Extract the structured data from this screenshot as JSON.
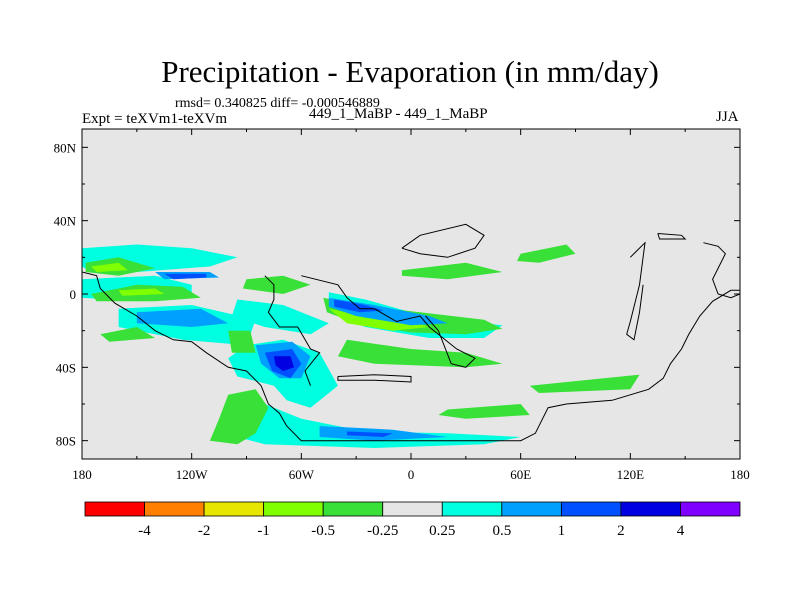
{
  "chart_data": {
    "type": "heatmap",
    "title": "Precipitation - Evaporation (in mm/day)",
    "stats": "rmsd= 0.340825 diff= -0.000546889",
    "left_label": "Expt = teXVm1-teXVm",
    "center_label": "449_1_MaBP - 449_1_MaBP",
    "right_label": "JJA",
    "x_ticks": [
      "180",
      "120W",
      "60W",
      "0",
      "60E",
      "120E",
      "180"
    ],
    "y_ticks": [
      "80N",
      "40N",
      "0",
      "40S",
      "80S"
    ],
    "xlim": [
      -180,
      180
    ],
    "ylim": [
      -90,
      90
    ],
    "background_color": "#e6e6e6",
    "colorbar": {
      "colors": [
        "#ff0000",
        "#ff8000",
        "#e6e600",
        "#80ff00",
        "#38e038",
        "#e6e6e6",
        "#00ffe0",
        "#00a0ff",
        "#0050ff",
        "#0000e0",
        "#8000ff"
      ],
      "labels": [
        "-4",
        "-2",
        "-1",
        "-0.5",
        "-0.25",
        "0.25",
        "0.5",
        "1",
        "2",
        "4"
      ]
    },
    "regions": [
      {
        "level": 6,
        "points": [
          [
            -180,
            25
          ],
          [
            -150,
            27
          ],
          [
            -120,
            25
          ],
          [
            -95,
            20
          ],
          [
            -110,
            15
          ],
          [
            -150,
            12
          ],
          [
            -175,
            12
          ],
          [
            -180,
            15
          ]
        ]
      },
      {
        "level": 6,
        "points": [
          [
            -180,
            8
          ],
          [
            -140,
            10
          ],
          [
            -120,
            5
          ],
          [
            -120,
            -2
          ],
          [
            -150,
            -4
          ],
          [
            -180,
            -2
          ]
        ]
      },
      {
        "level": 6,
        "points": [
          [
            -160,
            -8
          ],
          [
            -120,
            -6
          ],
          [
            -85,
            -14
          ],
          [
            -90,
            -28
          ],
          [
            -125,
            -25
          ],
          [
            -160,
            -18
          ]
        ]
      },
      {
        "level": 6,
        "points": [
          [
            -90,
            -28
          ],
          [
            -70,
            -25
          ],
          [
            -50,
            -32
          ],
          [
            -40,
            -50
          ],
          [
            -55,
            -62
          ],
          [
            -68,
            -58
          ],
          [
            -75,
            -50
          ],
          [
            -95,
            -45
          ],
          [
            -100,
            -35
          ]
        ]
      },
      {
        "level": 6,
        "points": [
          [
            -80,
            -60
          ],
          [
            -60,
            -68
          ],
          [
            -25,
            -75
          ],
          [
            20,
            -76
          ],
          [
            60,
            -78
          ],
          [
            40,
            -82
          ],
          [
            -20,
            -84
          ],
          [
            -80,
            -82
          ],
          [
            -95,
            -78
          ],
          [
            -90,
            -66
          ]
        ]
      },
      {
        "level": 6,
        "points": [
          [
            -45,
            1
          ],
          [
            -25,
            -3
          ],
          [
            0,
            -10
          ],
          [
            30,
            -15
          ],
          [
            50,
            -17
          ],
          [
            40,
            -24
          ],
          [
            10,
            -24
          ],
          [
            -25,
            -18
          ],
          [
            -45,
            -10
          ]
        ]
      },
      {
        "level": 6,
        "points": [
          [
            -95,
            -3
          ],
          [
            -70,
            -6
          ],
          [
            -45,
            -16
          ],
          [
            -55,
            -22
          ],
          [
            -80,
            -18
          ],
          [
            -98,
            -12
          ]
        ]
      },
      {
        "level": 4,
        "points": [
          [
            -175,
            0
          ],
          [
            -150,
            5
          ],
          [
            -125,
            4
          ],
          [
            -115,
            -2
          ],
          [
            -140,
            -4
          ],
          [
            -172,
            -4
          ]
        ]
      },
      {
        "level": 4,
        "points": [
          [
            -178,
            17
          ],
          [
            -160,
            20
          ],
          [
            -140,
            14
          ],
          [
            -160,
            10
          ],
          [
            -178,
            12
          ]
        ]
      },
      {
        "level": 4,
        "points": [
          [
            -100,
            -20
          ],
          [
            -88,
            -20
          ],
          [
            -85,
            -32
          ],
          [
            -98,
            -32
          ]
        ]
      },
      {
        "level": 4,
        "points": [
          [
            -100,
            -55
          ],
          [
            -85,
            -52
          ],
          [
            -78,
            -62
          ],
          [
            -85,
            -76
          ],
          [
            -95,
            -82
          ],
          [
            -110,
            -80
          ],
          [
            -105,
            -68
          ]
        ]
      },
      {
        "level": 4,
        "points": [
          [
            -35,
            -25
          ],
          [
            0,
            -30
          ],
          [
            30,
            -32
          ],
          [
            50,
            -38
          ],
          [
            30,
            -40
          ],
          [
            -20,
            -38
          ],
          [
            -40,
            -34
          ]
        ]
      },
      {
        "level": 4,
        "points": [
          [
            20,
            -63
          ],
          [
            60,
            -60
          ],
          [
            65,
            -66
          ],
          [
            30,
            -68
          ],
          [
            15,
            -66
          ]
        ]
      },
      {
        "level": 4,
        "points": [
          [
            60,
            22
          ],
          [
            85,
            27
          ],
          [
            90,
            22
          ],
          [
            70,
            17
          ],
          [
            58,
            18
          ]
        ]
      },
      {
        "level": 4,
        "points": [
          [
            65,
            -50
          ],
          [
            125,
            -44
          ],
          [
            120,
            -52
          ],
          [
            70,
            -54
          ]
        ]
      },
      {
        "level": 4,
        "points": [
          [
            -5,
            13
          ],
          [
            30,
            17
          ],
          [
            50,
            12
          ],
          [
            20,
            8
          ],
          [
            -5,
            10
          ]
        ]
      },
      {
        "level": 4,
        "points": [
          [
            -90,
            8
          ],
          [
            -70,
            10
          ],
          [
            -55,
            5
          ],
          [
            -70,
            0
          ],
          [
            -92,
            3
          ]
        ]
      },
      {
        "level": 4,
        "points": [
          [
            -48,
            -2
          ],
          [
            -30,
            -6
          ],
          [
            5,
            -10
          ],
          [
            40,
            -14
          ],
          [
            50,
            -19
          ],
          [
            30,
            -22
          ],
          [
            0,
            -21
          ],
          [
            -30,
            -16
          ],
          [
            -46,
            -10
          ]
        ]
      },
      {
        "level": 4,
        "points": [
          [
            -170,
            -22
          ],
          [
            -150,
            -18
          ],
          [
            -140,
            -24
          ],
          [
            -165,
            -26
          ]
        ]
      },
      {
        "level": 3,
        "points": [
          [
            -45,
            -8
          ],
          [
            -25,
            -12
          ],
          [
            0,
            -15
          ],
          [
            10,
            -18
          ],
          [
            -10,
            -20
          ],
          [
            -35,
            -16
          ]
        ]
      },
      {
        "level": 3,
        "points": [
          [
            -160,
            2
          ],
          [
            -140,
            3
          ],
          [
            -135,
            0
          ],
          [
            -158,
            -1
          ]
        ]
      },
      {
        "level": 3,
        "points": [
          [
            -175,
            15
          ],
          [
            -160,
            17
          ],
          [
            -155,
            13
          ],
          [
            -172,
            12
          ]
        ]
      },
      {
        "level": 7,
        "points": [
          [
            -85,
            -28
          ],
          [
            -65,
            -26
          ],
          [
            -55,
            -34
          ],
          [
            -60,
            -46
          ],
          [
            -72,
            -46
          ],
          [
            -82,
            -38
          ]
        ]
      },
      {
        "level": 7,
        "points": [
          [
            -150,
            -10
          ],
          [
            -115,
            -8
          ],
          [
            -100,
            -16
          ],
          [
            -120,
            -18
          ],
          [
            -150,
            -16
          ]
        ]
      },
      {
        "level": 7,
        "points": [
          [
            -45,
            -2
          ],
          [
            -20,
            -6
          ],
          [
            10,
            -12
          ],
          [
            20,
            -16
          ],
          [
            0,
            -17
          ],
          [
            -30,
            -12
          ],
          [
            -45,
            -7
          ]
        ]
      },
      {
        "level": 7,
        "points": [
          [
            -140,
            12
          ],
          [
            -110,
            12
          ],
          [
            -105,
            9
          ],
          [
            -135,
            8
          ]
        ]
      },
      {
        "level": 7,
        "points": [
          [
            -50,
            -72
          ],
          [
            -10,
            -74
          ],
          [
            20,
            -78
          ],
          [
            -20,
            -80
          ],
          [
            -50,
            -78
          ]
        ]
      },
      {
        "level": 8,
        "points": [
          [
            -80,
            -32
          ],
          [
            -65,
            -30
          ],
          [
            -60,
            -38
          ],
          [
            -66,
            -46
          ],
          [
            -76,
            -42
          ]
        ]
      },
      {
        "level": 8,
        "points": [
          [
            -135,
            11
          ],
          [
            -112,
            11
          ],
          [
            -112,
            9
          ],
          [
            -130,
            8
          ]
        ]
      },
      {
        "level": 8,
        "points": [
          [
            -42,
            -3
          ],
          [
            -25,
            -6
          ],
          [
            -15,
            -9
          ],
          [
            -28,
            -10
          ],
          [
            -42,
            -7
          ]
        ]
      },
      {
        "level": 8,
        "points": [
          [
            -35,
            -75
          ],
          [
            -10,
            -76
          ],
          [
            -15,
            -78
          ],
          [
            -35,
            -77
          ]
        ]
      },
      {
        "level": 9,
        "points": [
          [
            -75,
            -34
          ],
          [
            -66,
            -34
          ],
          [
            -64,
            -40
          ],
          [
            -70,
            -42
          ],
          [
            -74,
            -39
          ]
        ]
      }
    ],
    "coastlines": [
      [
        [
          -180,
          12
        ],
        [
          -172,
          10
        ],
        [
          -170,
          3
        ],
        [
          -162,
          -5
        ],
        [
          -150,
          -12
        ],
        [
          -140,
          -20
        ],
        [
          -130,
          -25
        ],
        [
          -120,
          -26
        ],
        [
          -112,
          -32
        ],
        [
          -100,
          -40
        ],
        [
          -90,
          -42
        ],
        [
          -82,
          -50
        ],
        [
          -78,
          -60
        ],
        [
          -72,
          -65
        ],
        [
          -68,
          -72
        ],
        [
          -60,
          -80
        ],
        [
          -40,
          -80
        ],
        [
          0,
          -80
        ],
        [
          40,
          -80
        ],
        [
          60,
          -80
        ],
        [
          68,
          -76
        ],
        [
          75,
          -62
        ],
        [
          85,
          -60
        ],
        [
          110,
          -58
        ],
        [
          130,
          -52
        ],
        [
          138,
          -46
        ],
        [
          142,
          -38
        ],
        [
          148,
          -30
        ],
        [
          152,
          -22
        ],
        [
          158,
          -12
        ],
        [
          165,
          -4
        ],
        [
          175,
          2
        ],
        [
          180,
          2
        ]
      ],
      [
        [
          -80,
          10
        ],
        [
          -75,
          5
        ],
        [
          -75,
          -3
        ],
        [
          -78,
          -10
        ],
        [
          -72,
          -18
        ],
        [
          -62,
          -18
        ],
        [
          -55,
          -30
        ],
        [
          -50,
          -32
        ],
        [
          -58,
          -42
        ],
        [
          -55,
          -50
        ]
      ],
      [
        [
          -60,
          10
        ],
        [
          -40,
          5
        ],
        [
          -35,
          -2
        ],
        [
          -28,
          -8
        ],
        [
          -20,
          -8
        ],
        [
          -8,
          -15
        ],
        [
          5,
          -12
        ],
        [
          10,
          -18
        ],
        [
          25,
          -30
        ],
        [
          35,
          -35
        ],
        [
          30,
          -40
        ],
        [
          22,
          -38
        ],
        [
          15,
          -20
        ],
        [
          8,
          -12
        ]
      ],
      [
        [
          -5,
          25
        ],
        [
          5,
          32
        ],
        [
          30,
          38
        ],
        [
          40,
          32
        ],
        [
          35,
          25
        ],
        [
          20,
          20
        ],
        [
          5,
          22
        ],
        [
          -5,
          25
        ]
      ],
      [
        [
          -40,
          -45
        ],
        [
          -20,
          -44
        ],
        [
          0,
          -45
        ],
        [
          0,
          -48
        ],
        [
          -20,
          -47
        ],
        [
          -40,
          -47
        ],
        [
          -40,
          -45
        ]
      ],
      [
        [
          120,
          20
        ],
        [
          128,
          28
        ],
        [
          125,
          5
        ],
        [
          120,
          -15
        ],
        [
          118,
          -22
        ],
        [
          122,
          -25
        ],
        [
          125,
          -10
        ],
        [
          127,
          5
        ]
      ],
      [
        [
          135,
          33
        ],
        [
          148,
          32
        ],
        [
          150,
          30
        ],
        [
          136,
          30
        ],
        [
          135,
          33
        ]
      ],
      [
        [
          160,
          28
        ],
        [
          168,
          26
        ],
        [
          172,
          22
        ],
        [
          165,
          8
        ],
        [
          168,
          0
        ],
        [
          175,
          -2
        ],
        [
          180,
          0
        ]
      ]
    ]
  }
}
